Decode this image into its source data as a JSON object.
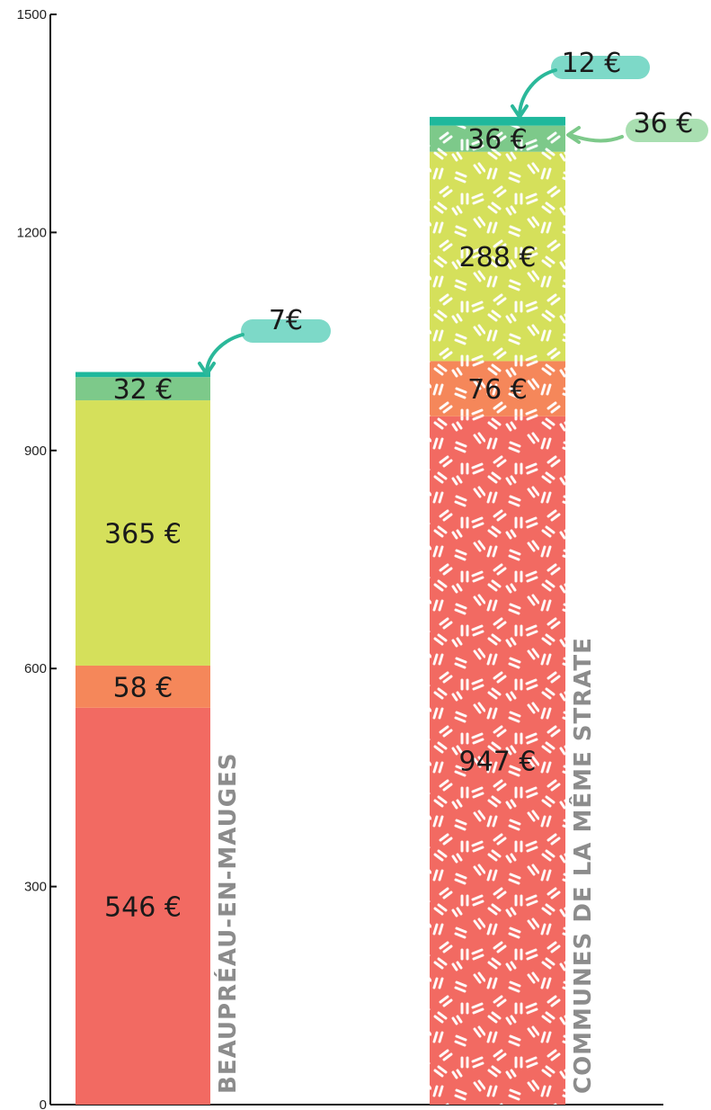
{
  "chart_data": {
    "type": "bar",
    "stacked": true,
    "ylim": [
      0,
      1500
    ],
    "yticks": [
      "0",
      "300",
      "600",
      "900",
      "1200",
      "1500"
    ],
    "categories": [
      "BEAUPRÉAU-EN-MAUGES",
      "COMMUNES DE LA MÊME STRATE"
    ],
    "series": [
      {
        "values": [
          546,
          947
        ],
        "labels": [
          "546 €",
          "947 €"
        ],
        "color": "#f26a62"
      },
      {
        "values": [
          58,
          76
        ],
        "labels": [
          "58 €",
          "76 €"
        ],
        "color": "#f5875a"
      },
      {
        "values": [
          365,
          288
        ],
        "labels": [
          "365 €",
          "288 €"
        ],
        "color": "#d5e05b"
      },
      {
        "values": [
          32,
          36
        ],
        "labels": [
          "32 €",
          "36 €"
        ],
        "color": "#7dc98a"
      },
      {
        "values": [
          7,
          12
        ],
        "labels": [
          "7€",
          "12 €"
        ],
        "color": "#1fb89c"
      }
    ],
    "callout_color": "#7dd9c8",
    "callout_color_alt": "#a9dfb1",
    "arrow_color": "#2bb89a",
    "pattern": {
      "bar": 1,
      "glyph": "//",
      "color": "#ffffff"
    }
  }
}
